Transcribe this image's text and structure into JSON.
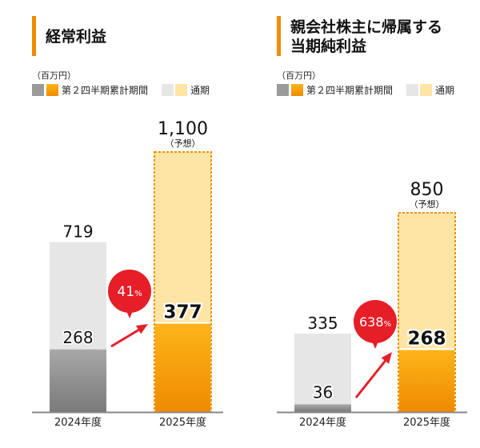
{
  "colors": {
    "accent": "#f08c00",
    "gray_dark": "#7d7d7d",
    "gray_light": "#e6e6e6",
    "orange": "#f39200",
    "orange_light": "#fee5a6",
    "badge_red": "#e61e28",
    "axis": "#888888"
  },
  "chart_data": [
    {
      "type": "bar",
      "title": "経常利益",
      "unit": "（百万円）",
      "legend": {
        "cumulative": "第２四半期累計期間",
        "full_year": "通期"
      },
      "categories": [
        "2024年度",
        "2025年度"
      ],
      "series": [
        {
          "name": "第２四半期累計期間",
          "values": [
            268,
            377
          ]
        },
        {
          "name": "通期",
          "values": [
            719,
            1100
          ]
        }
      ],
      "value_labels": {
        "cumulative": [
          "268",
          "377"
        ],
        "full_year": [
          "719",
          "1,100"
        ]
      },
      "forecast_note": "（予想）",
      "growth_badge": {
        "value": "41",
        "suffix": "%"
      },
      "ylim": [
        0,
        1100
      ]
    },
    {
      "type": "bar",
      "title": [
        "親会社株主に帰属する",
        "当期純利益"
      ],
      "unit": "（百万円）",
      "legend": {
        "cumulative": "第２四半期累計期間",
        "full_year": "通期"
      },
      "categories": [
        "2024年度",
        "2025年度"
      ],
      "series": [
        {
          "name": "第２四半期累計期間",
          "values": [
            36,
            268
          ]
        },
        {
          "name": "通期",
          "values": [
            335,
            850
          ]
        }
      ],
      "value_labels": {
        "cumulative": [
          "36",
          "268"
        ],
        "full_year": [
          "335",
          "850"
        ]
      },
      "forecast_note": "（予想）",
      "growth_badge": {
        "value": "638",
        "suffix": "%"
      },
      "ylim": [
        0,
        850
      ]
    }
  ]
}
